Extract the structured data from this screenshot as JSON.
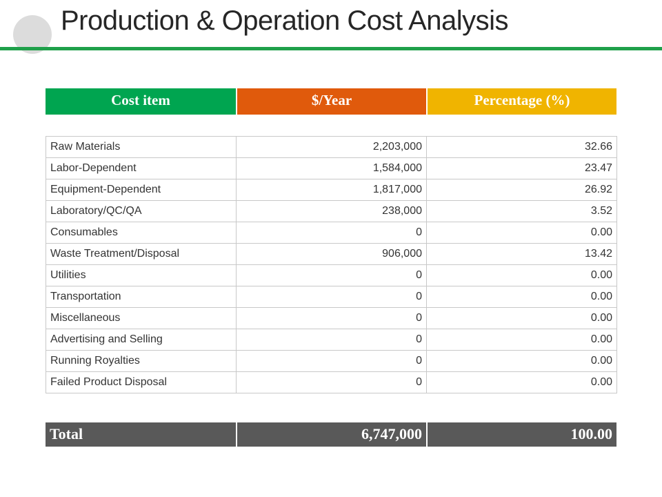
{
  "slide": {
    "title": "Production & Operation Cost Analysis"
  },
  "colors": {
    "accent_rule": "#1fa04a",
    "header_col1": "#00a550",
    "header_col2": "#e05a0c",
    "header_col3": "#f0b400",
    "total_bg": "#595959"
  },
  "table": {
    "headers": [
      "Cost item",
      "$/Year",
      "Percentage (%)"
    ],
    "rows": [
      {
        "item": "Raw Materials",
        "per_year": "2,203,000",
        "percentage": "32.66"
      },
      {
        "item": "Labor-Dependent",
        "per_year": "1,584,000",
        "percentage": "23.47"
      },
      {
        "item": "Equipment-Dependent",
        "per_year": "1,817,000",
        "percentage": "26.92"
      },
      {
        "item": "Laboratory/QC/QA",
        "per_year": "238,000",
        "percentage": "3.52"
      },
      {
        "item": "Consumables",
        "per_year": "0",
        "percentage": "0.00"
      },
      {
        "item": "Waste Treatment/Disposal",
        "per_year": "906,000",
        "percentage": "13.42"
      },
      {
        "item": "Utilities",
        "per_year": "0",
        "percentage": "0.00"
      },
      {
        "item": "Transportation",
        "per_year": "0",
        "percentage": "0.00"
      },
      {
        "item": "Miscellaneous",
        "per_year": "0",
        "percentage": "0.00"
      },
      {
        "item": "Advertising and Selling",
        "per_year": "0",
        "percentage": "0.00"
      },
      {
        "item": "Running Royalties",
        "per_year": "0",
        "percentage": "0.00"
      },
      {
        "item": "Failed Product Disposal",
        "per_year": "0",
        "percentage": "0.00"
      }
    ],
    "total": {
      "label": "Total",
      "per_year": "6,747,000",
      "percentage": "100.00"
    }
  }
}
